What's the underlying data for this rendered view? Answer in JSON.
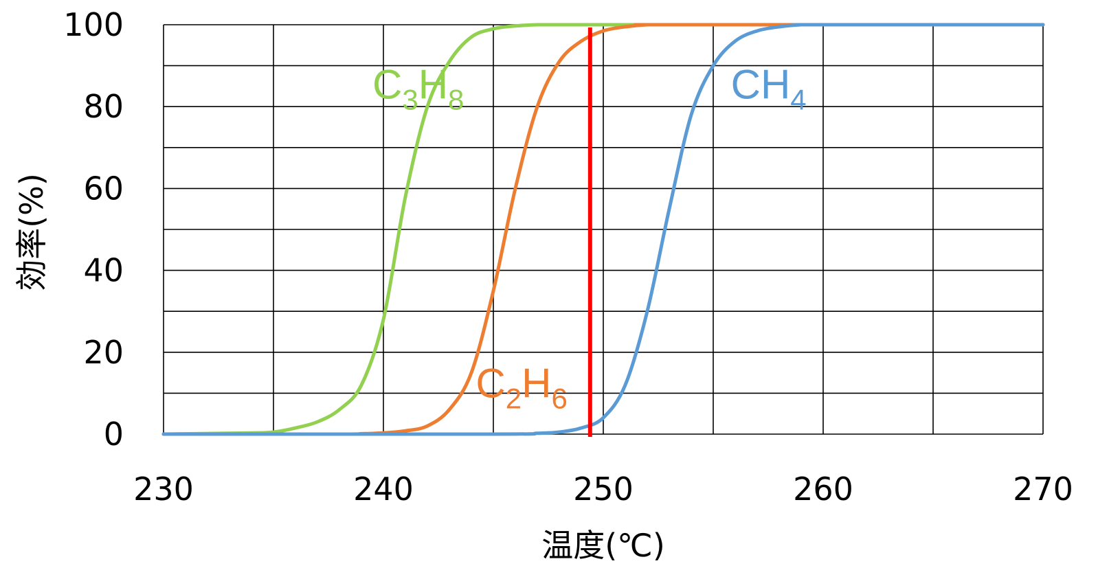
{
  "chart_data": {
    "type": "line",
    "xlabel": "温度(℃)",
    "ylabel": "効率(%)",
    "xlim": [
      230,
      270
    ],
    "ylim": [
      0,
      100
    ],
    "x_ticks": [
      230,
      240,
      250,
      260,
      270
    ],
    "y_ticks": [
      0,
      20,
      40,
      60,
      80,
      100
    ],
    "x_tick_labels": [
      "230",
      "240",
      "250",
      "260",
      "270"
    ],
    "y_tick_labels": [
      "0",
      "20",
      "40",
      "60",
      "80",
      "100"
    ],
    "grid": true,
    "grid_x_step": 5,
    "grid_y_step": 10,
    "series": [
      {
        "name": "C3H8",
        "label_parts": [
          {
            "t": "C"
          },
          {
            "t": "3",
            "sub": true
          },
          {
            "t": "H"
          },
          {
            "t": "8",
            "sub": true
          }
        ],
        "color": "#92D050",
        "x": [
          230,
          234,
          235,
          236,
          237,
          238,
          239,
          240,
          241,
          242,
          243,
          244,
          245,
          246,
          247,
          248,
          250,
          270
        ],
        "y": [
          0,
          0.3,
          0.5,
          1.5,
          3,
          6,
          12,
          28,
          58,
          80,
          91,
          97,
          99,
          99.7,
          100,
          100,
          100,
          100
        ],
        "label_at": [
          239.5,
          82
        ]
      },
      {
        "name": "C2H6",
        "label_parts": [
          {
            "t": "C"
          },
          {
            "t": "2",
            "sub": true
          },
          {
            "t": "H"
          },
          {
            "t": "6",
            "sub": true
          }
        ],
        "color": "#ED7D31",
        "x": [
          230,
          238,
          239,
          240,
          241,
          242,
          243,
          244,
          245,
          246,
          247,
          248,
          249,
          250,
          251,
          252,
          253,
          270
        ],
        "y": [
          0,
          0,
          0.1,
          0.3,
          0.8,
          2,
          6,
          15,
          35,
          60,
          80,
          91,
          96,
          98.5,
          99.5,
          100,
          100,
          100
        ],
        "label_at": [
          244.2,
          9
        ]
      },
      {
        "name": "CH4",
        "label_parts": [
          {
            "t": "C"
          },
          {
            "t": "H"
          },
          {
            "t": "4",
            "sub": true
          }
        ],
        "color": "#5B9BD5",
        "x": [
          230,
          245,
          247,
          248,
          249,
          250,
          251,
          252,
          253,
          254,
          255,
          256,
          257,
          258,
          259,
          260,
          270
        ],
        "y": [
          0,
          0,
          0.2,
          0.5,
          1.5,
          4,
          12,
          30,
          55,
          78,
          90,
          96,
          98.5,
          99.5,
          100,
          100,
          100
        ],
        "label_at": [
          255.8,
          82
        ]
      }
    ],
    "reference_line": {
      "x": 249.4,
      "color": "#FF0000"
    }
  }
}
